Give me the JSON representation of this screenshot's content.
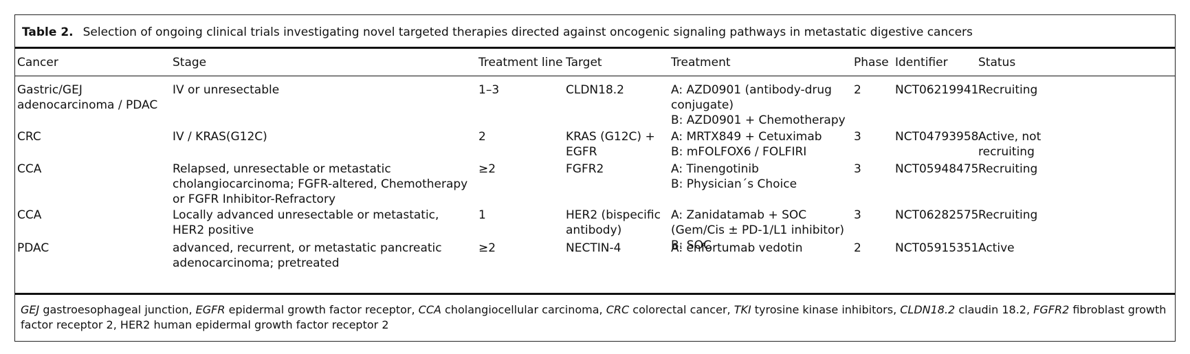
{
  "caption": {
    "label": "Table 2.",
    "text": "Selection of ongoing clinical trials investigating novel targeted therapies directed against oncogenic signaling pathways in metastatic digestive cancers"
  },
  "headers": [
    "Cancer",
    "Stage",
    "Treatment line",
    "Target",
    "Treatment",
    "Phase",
    "Identifier",
    "Status"
  ],
  "rows": [
    {
      "cancer": "Gastric/GEJ adenocarcinoma / PDAC",
      "stage": "IV or unresectable",
      "line": "1–3",
      "target": "CLDN18.2",
      "treatment": [
        "A: AZD0901 (antibody-drug conjugate)",
        "B: AZD0901 + Chemotherapy"
      ],
      "phase": "2",
      "identifier": "NCT06219941",
      "status": "Recruiting"
    },
    {
      "cancer": "CRC",
      "stage": "IV / KRAS(G12C)",
      "line": "2",
      "target": "KRAS (G12C) + EGFR",
      "treatment": [
        "A: MRTX849 + Cetuximab",
        "B: mFOLFOX6 / FOLFIRI"
      ],
      "phase": "3",
      "identifier": "NCT04793958",
      "status": "Active, not recruiting"
    },
    {
      "cancer": "CCA",
      "stage": "Relapsed, unresectable or metastatic cholangiocarcinoma; FGFR-altered, Chemotherapy or FGFR Inhibitor-Refractory",
      "line": "≥2",
      "target": "FGFR2",
      "treatment": [
        "A: Tinengotinib",
        "B: Physician´s Choice"
      ],
      "phase": "3",
      "identifier": "NCT05948475",
      "status": "Recruiting"
    },
    {
      "cancer": "CCA",
      "stage": "Locally advanced unresectable or metastatic, HER2 positive",
      "line": "1",
      "target": "HER2 (bispecific antibody)",
      "treatment": [
        "A: Zanidatamab + SOC (Gem/Cis ± PD-1/L1 inhibitor) B: SOC"
      ],
      "phase": "3",
      "identifier": "NCT06282575",
      "status": "Recruiting"
    },
    {
      "cancer": "PDAC",
      "stage": "advanced, recurrent, or metastatic pancreatic adenocarcinoma; pretreated",
      "line": "≥2",
      "target": "NECTIN-4",
      "treatment": [
        "A: enfortumab vedotin"
      ],
      "phase": "2",
      "identifier": "NCT05915351",
      "status": "Active"
    }
  ],
  "footnote": [
    {
      "abbr": "GEJ",
      "def": "gastroesophageal junction"
    },
    {
      "abbr": "EGFR",
      "def": "epidermal growth factor receptor"
    },
    {
      "abbr": "CCA",
      "def": "cholangiocellular carcinoma"
    },
    {
      "abbr": "CRC",
      "def": "colorectal cancer"
    },
    {
      "abbr": "TKI",
      "def": "tyrosine kinase inhibitors"
    },
    {
      "abbr": "CLDN18.2",
      "def": "claudin 18.2"
    },
    {
      "abbr": "FGFR2",
      "def": "fibroblast growth factor receptor 2"
    },
    {
      "abbr": "HER2",
      "def": "human epidermal growth factor receptor 2",
      "plain": true
    }
  ]
}
